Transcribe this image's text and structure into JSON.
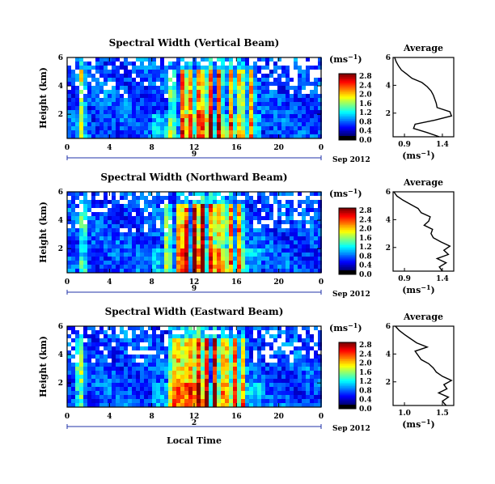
{
  "xlabel": "Local Time",
  "date_label": "Sep 2012",
  "unit_label": "(ms",
  "unit_sup": "−1",
  "avg_title": "Average",
  "chart_data": [
    {
      "type": "heatmap",
      "title": "Spectral Width (Vertical Beam)",
      "ylabel": "Height (km)",
      "xticks": [
        "0",
        "4",
        "8",
        "12",
        "16",
        "20",
        "0"
      ],
      "yticks": [
        "6",
        "4",
        "2"
      ],
      "xlim": [
        0,
        24
      ],
      "ylim": [
        0.3,
        6
      ],
      "day_label": "9",
      "colorbar": {
        "ticks": [
          "2.8",
          "2.4",
          "2.0",
          "1.6",
          "1.2",
          "0.8",
          "0.4",
          "0.0"
        ],
        "range": [
          0,
          2.8
        ]
      },
      "bursts": [
        {
          "t": 1.2,
          "amp": 1.3
        },
        {
          "t": 10.8,
          "amp": 2.2
        },
        {
          "t": 11.5,
          "amp": 1.9
        },
        {
          "t": 12.4,
          "amp": 2.8
        },
        {
          "t": 13.3,
          "amp": 2.6
        },
        {
          "t": 14.2,
          "amp": 2.4
        },
        {
          "t": 15.3,
          "amp": 1.7
        },
        {
          "t": 16.2,
          "amp": 2.0
        },
        {
          "t": 17.2,
          "amp": 1.5
        },
        {
          "t": 9.7,
          "amp": 1.1
        }
      ],
      "average": {
        "title": "Average",
        "xlabel": "(ms",
        "xticks": [
          "0.9",
          "1.4"
        ],
        "xlim": [
          0.75,
          1.55
        ],
        "yticks": [
          "6",
          "4",
          "2"
        ],
        "ylim": [
          0.3,
          6
        ],
        "height": [
          0.3,
          0.6,
          0.9,
          1.2,
          1.5,
          1.8,
          2.1,
          2.4,
          2.7,
          3.0,
          3.3,
          3.6,
          3.9,
          4.2,
          4.5,
          4.8,
          5.1,
          5.4,
          5.7,
          6.0
        ],
        "value": [
          1.36,
          1.2,
          1.02,
          1.04,
          1.3,
          1.52,
          1.5,
          1.33,
          1.32,
          1.3,
          1.28,
          1.25,
          1.2,
          1.13,
          1.0,
          0.93,
          0.86,
          0.82,
          0.79,
          0.77
        ]
      }
    },
    {
      "type": "heatmap",
      "title": "Spectral Width (Northward Beam)",
      "ylabel": "Height (km)",
      "xticks": [
        "0",
        "4",
        "8",
        "12",
        "16",
        "20",
        "0"
      ],
      "yticks": [
        "6",
        "4",
        "2"
      ],
      "xlim": [
        0,
        24
      ],
      "ylim": [
        0.3,
        6
      ],
      "day_label": "9",
      "colorbar": {
        "ticks": [
          "2.8",
          "2.4",
          "2.0",
          "1.6",
          "1.2",
          "0.8",
          "0.4",
          "0.0"
        ],
        "range": [
          0,
          2.8
        ]
      },
      "bursts": [
        {
          "t": 1.3,
          "amp": 1.1
        },
        {
          "t": 10.4,
          "amp": 1.9
        },
        {
          "t": 11.0,
          "amp": 2.4
        },
        {
          "t": 11.9,
          "amp": 2.8
        },
        {
          "t": 12.6,
          "amp": 2.7
        },
        {
          "t": 13.5,
          "amp": 2.6
        },
        {
          "t": 14.3,
          "amp": 2.2
        },
        {
          "t": 15.2,
          "amp": 2.0
        },
        {
          "t": 16.1,
          "amp": 1.8
        },
        {
          "t": 9.3,
          "amp": 1.3
        }
      ],
      "average": {
        "title": "Average",
        "xlabel": "(ms",
        "xticks": [
          "0.9",
          "1.4"
        ],
        "xlim": [
          0.75,
          1.55
        ],
        "yticks": [
          "6",
          "4",
          "2"
        ],
        "ylim": [
          0.3,
          6
        ],
        "height": [
          0.3,
          0.6,
          0.9,
          1.2,
          1.5,
          1.8,
          2.1,
          2.4,
          2.7,
          3.0,
          3.3,
          3.6,
          3.9,
          4.2,
          4.5,
          4.8,
          5.1,
          5.4,
          5.7,
          6.0
        ],
        "value": [
          1.4,
          1.36,
          1.45,
          1.33,
          1.48,
          1.42,
          1.5,
          1.38,
          1.28,
          1.25,
          1.27,
          1.16,
          1.22,
          1.24,
          1.12,
          1.08,
          0.98,
          0.88,
          0.8,
          0.76
        ]
      }
    },
    {
      "type": "heatmap",
      "title": "Spectral Width (Eastward Beam)",
      "ylabel": "Height (km)",
      "xticks": [
        "0",
        "4",
        "8",
        "12",
        "16",
        "20",
        "0"
      ],
      "yticks": [
        "6",
        "4",
        "2"
      ],
      "xlim": [
        0,
        24
      ],
      "ylim": [
        0.3,
        6
      ],
      "day_label": "2",
      "colorbar": {
        "ticks": [
          "2.8",
          "2.4",
          "2.0",
          "1.6",
          "1.2",
          "0.8",
          "0.4",
          "0.0"
        ],
        "range": [
          0,
          2.8
        ]
      },
      "bursts": [
        {
          "t": 1.0,
          "amp": 1.4
        },
        {
          "t": 9.8,
          "amp": 2.0
        },
        {
          "t": 10.5,
          "amp": 2.4
        },
        {
          "t": 11.3,
          "amp": 2.6
        },
        {
          "t": 12.1,
          "amp": 2.8
        },
        {
          "t": 12.9,
          "amp": 2.7
        },
        {
          "t": 13.8,
          "amp": 2.5
        },
        {
          "t": 14.7,
          "amp": 2.3
        },
        {
          "t": 15.6,
          "amp": 2.2
        },
        {
          "t": 16.4,
          "amp": 1.6
        }
      ],
      "average": {
        "title": "Average",
        "xlabel": "(ms",
        "xticks": [
          "1.0",
          "1.5"
        ],
        "xlim": [
          0.85,
          1.65
        ],
        "yticks": [
          "6",
          "4",
          "2"
        ],
        "ylim": [
          0.3,
          6
        ],
        "height": [
          0.3,
          0.6,
          0.9,
          1.2,
          1.5,
          1.8,
          2.1,
          2.4,
          2.7,
          3.0,
          3.3,
          3.6,
          3.9,
          4.2,
          4.5,
          4.8,
          5.1,
          5.4,
          5.7,
          6.0
        ],
        "value": [
          1.55,
          1.5,
          1.58,
          1.45,
          1.56,
          1.52,
          1.62,
          1.5,
          1.42,
          1.38,
          1.32,
          1.22,
          1.18,
          1.14,
          1.3,
          1.16,
          1.08,
          1.0,
          0.93,
          0.88
        ]
      }
    }
  ]
}
